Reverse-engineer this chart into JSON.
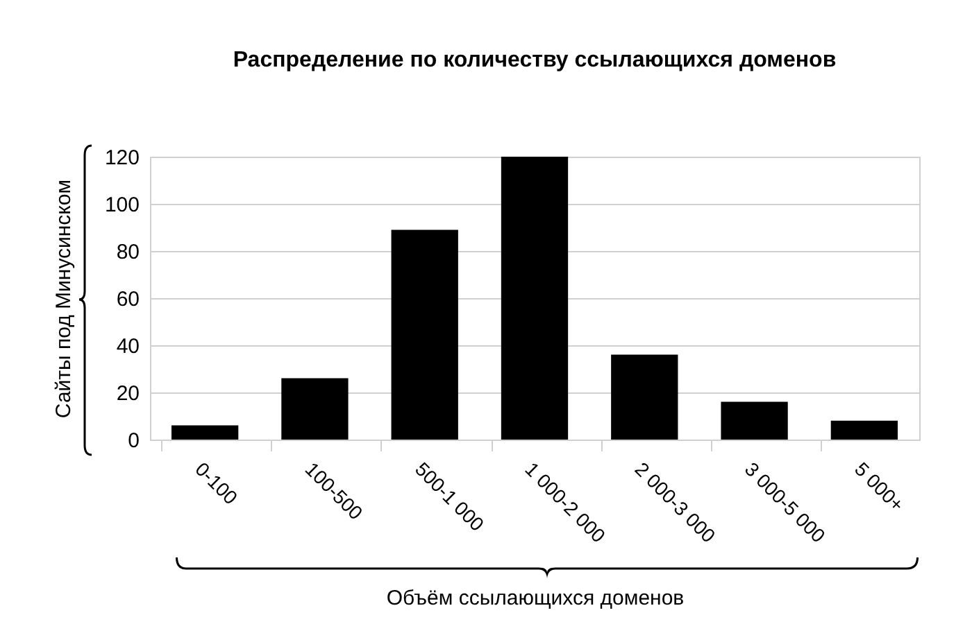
{
  "chart_data": {
    "type": "bar",
    "title": "Распределение по количеству ссылающихся доменов",
    "xlabel": "Объём ссылающихся доменов",
    "ylabel": "Сайты под Минусинском",
    "categories": [
      "0-100",
      "100-500",
      "500-1 000",
      "1 000-2 000",
      "2 000-3 000",
      "3 000-5 000",
      "5 000+"
    ],
    "values": [
      6,
      26,
      89,
      120,
      36,
      16,
      8
    ],
    "color": "#000000",
    "ylim": [
      0,
      120
    ],
    "yticks": [
      0,
      20,
      40,
      60,
      80,
      100,
      120
    ],
    "grid": "y"
  }
}
